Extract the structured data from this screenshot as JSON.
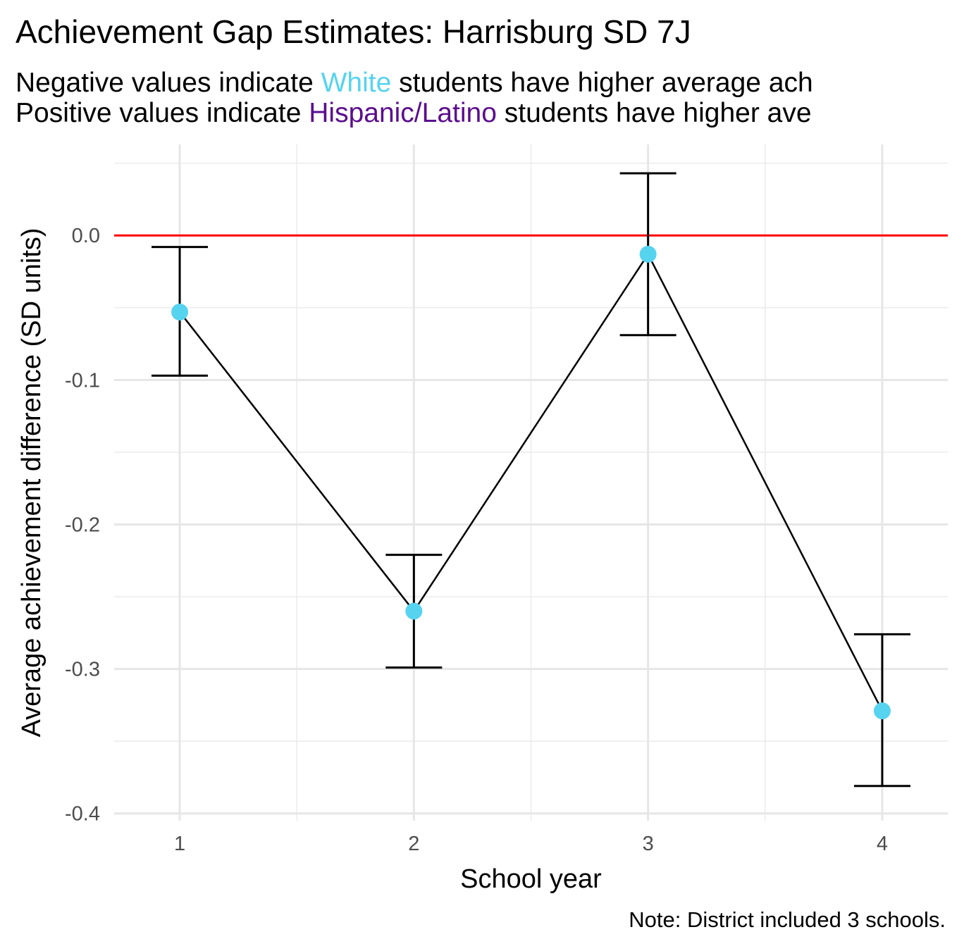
{
  "chart_data": {
    "type": "line",
    "title": "Achievement Gap Estimates: Harrisburg SD 7J",
    "subtitle_lines": [
      {
        "prefix": "Negative values indicate ",
        "highlight": "White",
        "suffix": " students have higher average ach",
        "highlight_color": "#56d3ef"
      },
      {
        "prefix": "Positive values indicate ",
        "highlight": "Hispanic/Latino",
        "suffix": " students have higher ave",
        "highlight_color": "#5b0d8f"
      }
    ],
    "xlabel": "School year",
    "ylabel": "Average achievement difference (SD units)",
    "caption": "Note: District included 3 schools.",
    "x": [
      1,
      2,
      3,
      4
    ],
    "x_tick_labels": [
      "1",
      "2",
      "3",
      "4"
    ],
    "xlim": [
      0.72,
      4.28
    ],
    "ylim": [
      -0.405,
      0.063
    ],
    "y_ticks": [
      0.0,
      -0.1,
      -0.2,
      -0.3,
      -0.4
    ],
    "y_tick_labels": [
      "0.0",
      "-0.1",
      "-0.2",
      "-0.3",
      "-0.4"
    ],
    "series": [
      {
        "values": [
          -0.053,
          -0.26,
          -0.013,
          -0.329
        ],
        "lower": [
          -0.097,
          -0.299,
          -0.069,
          -0.381
        ],
        "upper": [
          -0.008,
          -0.221,
          0.043,
          -0.276
        ],
        "line_color": "#000000",
        "point_color": "#56d3ef"
      }
    ],
    "reference_line": {
      "y": 0.0,
      "color": "#ff0000"
    },
    "grid": true,
    "legend": "none"
  }
}
